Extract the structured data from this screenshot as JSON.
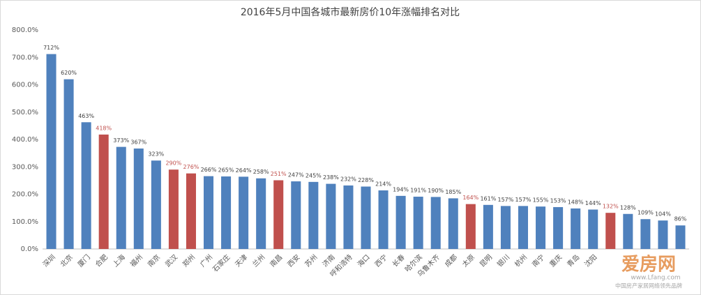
{
  "chart_data": {
    "type": "bar",
    "title": "2016年5月中国各城市最新房价10年涨幅排名对比",
    "categories": [
      "深圳",
      "北京",
      "厦门",
      "合肥",
      "上海",
      "福州",
      "南京",
      "武汉",
      "郑州",
      "广州",
      "石家庄",
      "天津",
      "兰州",
      "南昌",
      "西安",
      "苏州",
      "济南",
      "呼和浩特",
      "海口",
      "西宁",
      "长春",
      "哈尔滨",
      "乌鲁木齐",
      "成都",
      "太原",
      "昆明",
      "银川",
      "杭州",
      "南宁",
      "重庆",
      "青岛",
      "沈阳",
      null,
      null,
      null,
      null,
      null
    ],
    "values": [
      712,
      620,
      463,
      418,
      373,
      367,
      323,
      290,
      276,
      266,
      265,
      264,
      258,
      251,
      247,
      245,
      238,
      232,
      228,
      214,
      194,
      191,
      190,
      185,
      164,
      161,
      157,
      157,
      155,
      153,
      148,
      144,
      132,
      128,
      109,
      104,
      86
    ],
    "value_labels": [
      "712%",
      "620%",
      "463%",
      "418%",
      "373%",
      "367%",
      "323%",
      "290%",
      "276%",
      "266%",
      "265%",
      "264%",
      "258%",
      "251%",
      "247%",
      "245%",
      "238%",
      "232%",
      "228%",
      "214%",
      "194%",
      "191%",
      "190%",
      "185%",
      "164%",
      "161%",
      "157%",
      "157%",
      "155%",
      "153%",
      "148%",
      "144%",
      "132%",
      "128%",
      "109%",
      "104%",
      "86%"
    ],
    "colors": [
      "#4f81bd",
      "#4f81bd",
      "#4f81bd",
      "#c0504d",
      "#4f81bd",
      "#4f81bd",
      "#4f81bd",
      "#c0504d",
      "#c0504d",
      "#4f81bd",
      "#4f81bd",
      "#4f81bd",
      "#4f81bd",
      "#c0504d",
      "#4f81bd",
      "#4f81bd",
      "#4f81bd",
      "#4f81bd",
      "#4f81bd",
      "#4f81bd",
      "#4f81bd",
      "#4f81bd",
      "#4f81bd",
      "#4f81bd",
      "#c0504d",
      "#4f81bd",
      "#4f81bd",
      "#4f81bd",
      "#4f81bd",
      "#4f81bd",
      "#4f81bd",
      "#4f81bd",
      "#c0504d",
      "#4f81bd",
      "#4f81bd",
      "#4f81bd",
      "#4f81bd"
    ],
    "ylim": [
      0,
      800
    ],
    "yticks": [
      {
        "value": 0,
        "label": "0.0%"
      },
      {
        "value": 100,
        "label": "100.0%"
      },
      {
        "value": 200,
        "label": "200.0%"
      },
      {
        "value": 300,
        "label": "300.0%"
      },
      {
        "value": 400,
        "label": "400.0%"
      },
      {
        "value": 500,
        "label": "500.0%"
      },
      {
        "value": 600,
        "label": "600.0%"
      },
      {
        "value": 700,
        "label": "700.0%"
      },
      {
        "value": 800,
        "label": "800.0%"
      }
    ],
    "grid": false,
    "watermark": {
      "brand": "爱房网",
      "url": "www.Lfang.com",
      "slogan": "中国房产家居网络领先品牌"
    }
  }
}
